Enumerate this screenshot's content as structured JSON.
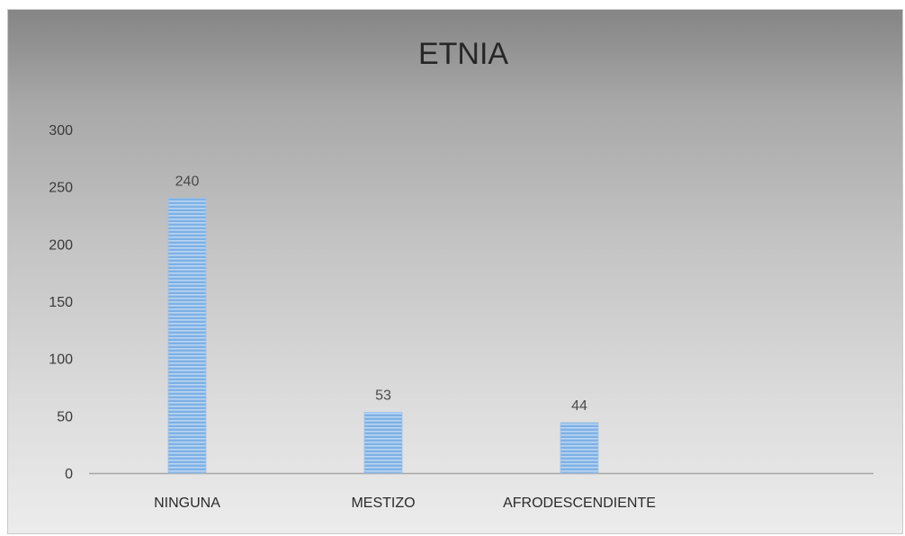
{
  "chart_data": {
    "type": "bar",
    "title": "ETNIA",
    "categories": [
      "NINGUNA",
      "MESTIZO",
      "AFRODESCENDIENTE",
      ""
    ],
    "values": [
      240,
      53,
      44,
      null
    ],
    "data_labels": [
      "240",
      "53",
      "44",
      ""
    ],
    "ylim": [
      0,
      300
    ],
    "yticks": [
      0,
      50,
      100,
      150,
      200,
      250,
      300
    ],
    "xlabel": "",
    "ylabel": "",
    "grid": false,
    "legend": "none",
    "bar_color": "#7fb0e3",
    "bar_stripe_color": "#b8d6f4",
    "axis_color": "#a6a6a6"
  }
}
